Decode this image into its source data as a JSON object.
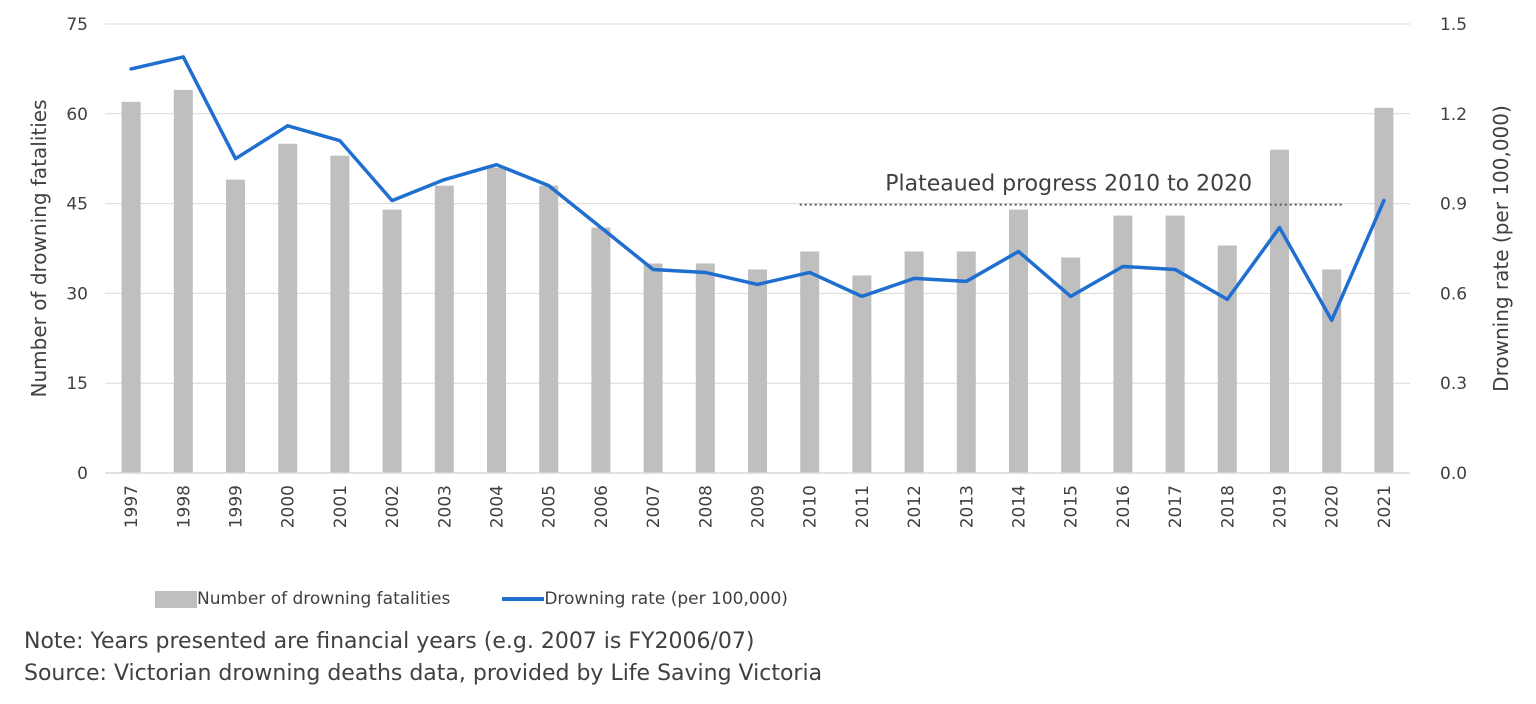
{
  "chart_data": {
    "type": "bar",
    "categories": [
      "1997",
      "1998",
      "1999",
      "2000",
      "2001",
      "2002",
      "2003",
      "2004",
      "2005",
      "2006",
      "2007",
      "2008",
      "2009",
      "2010",
      "2011",
      "2012",
      "2013",
      "2014",
      "2015",
      "2016",
      "2017",
      "2018",
      "2019",
      "2020",
      "2021"
    ],
    "series": [
      {
        "name": "Number of drowning fatalities",
        "type": "bar",
        "axis": "left",
        "values": [
          62,
          64,
          49,
          55,
          53,
          44,
          48,
          51,
          48,
          41,
          35,
          35,
          34,
          37,
          33,
          37,
          37,
          44,
          36,
          43,
          43,
          38,
          54,
          34,
          61
        ]
      },
      {
        "name": "Drowning rate (per 100,000)",
        "type": "line",
        "axis": "right",
        "values": [
          1.35,
          1.39,
          1.05,
          1.16,
          1.11,
          0.91,
          0.98,
          1.03,
          0.96,
          0.82,
          0.68,
          0.67,
          0.63,
          0.67,
          0.59,
          0.65,
          0.64,
          0.74,
          0.59,
          0.69,
          0.68,
          0.58,
          0.82,
          0.51,
          0.91
        ]
      }
    ],
    "ylabel": "Number of drowning fatalities",
    "ylabel_right": "Drowning rate (per 100,000)",
    "ylim": [
      0,
      75
    ],
    "ylim_right": [
      0,
      1.5
    ],
    "yticks": [
      "0",
      "15",
      "30",
      "45",
      "60",
      "75"
    ],
    "yticks_right": [
      "0.0",
      "0.3",
      "0.6",
      "0.9",
      "1.2",
      "1.5"
    ],
    "grid": true,
    "legend_position": "bottom",
    "annotation": {
      "text": "Plateaued progress 2010 to 2020",
      "from": "2010",
      "to": "2020",
      "level": 44.5
    },
    "colors": {
      "bar": "#BFBFBF",
      "line": "#1F6FD0",
      "grid": "#D9D9D9",
      "text": "#404040",
      "dotted": "#595959"
    }
  },
  "notes": {
    "note": "Note: Years presented are financial years (e.g. 2007 is FY2006/07)",
    "source": "Source: Victorian drowning deaths data, provided by Life Saving Victoria"
  }
}
